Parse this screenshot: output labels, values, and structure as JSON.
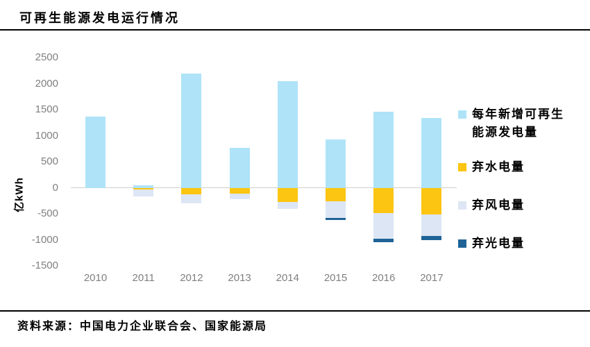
{
  "page": {
    "title": "可再生能源发电运行情况",
    "source": "资料来源：中国电力企业联合会、国家能源局"
  },
  "chart_data": {
    "type": "bar",
    "stacked": true,
    "title": "可再生能源发电运行情况",
    "ylabel": "亿kWh",
    "xlabel": "",
    "categories": [
      "2010",
      "2011",
      "2012",
      "2013",
      "2014",
      "2015",
      "2016",
      "2017"
    ],
    "series": [
      {
        "key": "annual-new-renewable-generation",
        "name": "每年新增可再生能源发电量",
        "color": "#aee3f8",
        "values": [
          1370,
          50,
          2200,
          770,
          2050,
          930,
          1460,
          1340
        ]
      },
      {
        "key": "hydro-curtailment",
        "name": "弃水电量",
        "color": "#fbc511",
        "values": [
          0,
          -35,
          -120,
          -115,
          -275,
          -265,
          -490,
          -515
        ]
      },
      {
        "key": "wind-curtailment",
        "name": "弃风电量",
        "color": "#dde6f4",
        "values": [
          0,
          -125,
          -185,
          -110,
          -125,
          -310,
          -485,
          -415
        ]
      },
      {
        "key": "solar-curtailment",
        "name": "弃光电量",
        "color": "#1f6396",
        "values": [
          0,
          0,
          0,
          0,
          0,
          -50,
          -75,
          -75
        ]
      }
    ],
    "yticks": [
      2500,
      2000,
      1500,
      1000,
      500,
      0,
      -500,
      -1000,
      -1500
    ],
    "ylim": [
      -1500,
      2500
    ],
    "grid": false,
    "legend_position": "right",
    "zero_line_color": "#cfcece",
    "axis_text_color": "#7f7f7f"
  }
}
